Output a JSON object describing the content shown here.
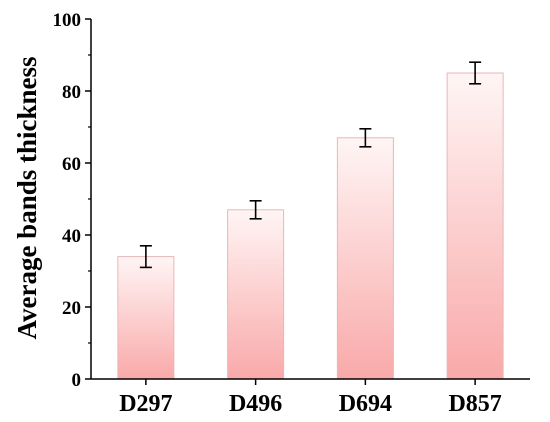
{
  "chart_data": {
    "type": "bar",
    "categories": [
      "D297",
      "D496",
      "D694",
      "D857"
    ],
    "values": [
      34,
      47,
      67,
      85
    ],
    "errors": [
      3,
      2.5,
      2.5,
      3
    ],
    "ylabel": "Average bands thickness",
    "xlabel": "",
    "ylim": [
      0,
      100
    ],
    "y_ticks": [
      0,
      20,
      40,
      60,
      80,
      100
    ],
    "grid": false,
    "bar_gradient": {
      "top": "#fff5f5",
      "bottom": "#f9a9a9"
    },
    "bar_border": "#e6b8b8",
    "axis_color": "#000000"
  }
}
